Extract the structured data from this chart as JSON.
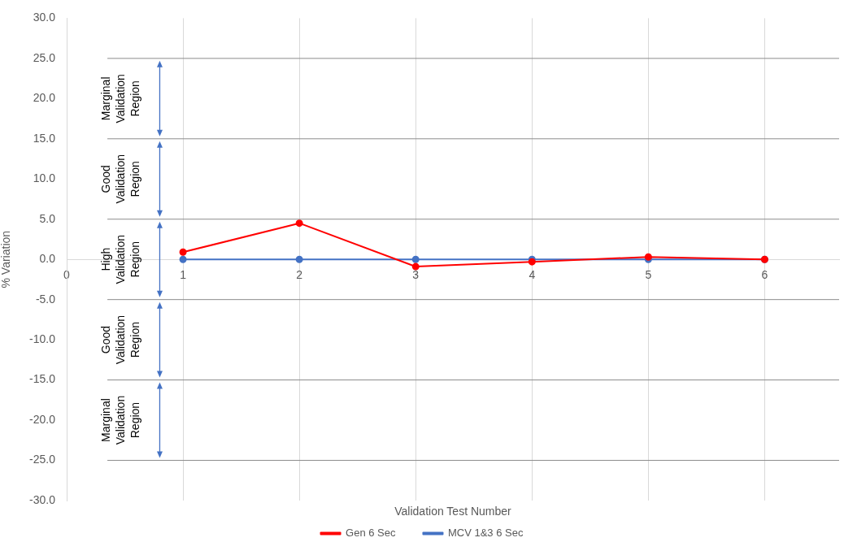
{
  "chart_data": {
    "type": "line",
    "xlabel": "Validation Test Number",
    "ylabel": "% Variation",
    "x": [
      1,
      2,
      3,
      4,
      5,
      6
    ],
    "series": [
      {
        "name": "Gen 6 Sec",
        "color": "#ff0000",
        "values": [
          0.9,
          4.5,
          -0.9,
          -0.3,
          0.3,
          0.0
        ]
      },
      {
        "name": "MCV 1&3 6 Sec",
        "color": "#4472c4",
        "values": [
          0,
          0,
          0,
          0,
          0,
          0
        ]
      }
    ],
    "xlim": [
      0,
      6.64
    ],
    "xticks": [
      0,
      1,
      2,
      3,
      4,
      5,
      6
    ],
    "ylim": [
      -30,
      30
    ],
    "yticks": [
      {
        "value": -30,
        "label": "-30.0"
      },
      {
        "value": -25,
        "label": "-25.0"
      },
      {
        "value": -20,
        "label": "-20.0"
      },
      {
        "value": -15,
        "label": "-15.0"
      },
      {
        "value": -10,
        "label": "-10.0"
      },
      {
        "value": -5,
        "label": "-5.0"
      },
      {
        "value": 0,
        "label": "0.0"
      },
      {
        "value": 5,
        "label": "5.0"
      },
      {
        "value": 10,
        "label": "10.0"
      },
      {
        "value": 15,
        "label": "15.0"
      },
      {
        "value": 20,
        "label": "20.0"
      },
      {
        "value": 25,
        "label": "25.0"
      },
      {
        "value": 30,
        "label": "30.0"
      }
    ],
    "ref_lines": [
      {
        "axis": "y",
        "value": 25,
        "color": "#8c8c8c"
      },
      {
        "axis": "y",
        "value": 15,
        "color": "#8c8c8c"
      },
      {
        "axis": "y",
        "value": 5,
        "color": "#8c8c8c"
      },
      {
        "axis": "y",
        "value": -5,
        "color": "#8c8c8c"
      },
      {
        "axis": "y",
        "value": -15,
        "color": "#8c8c8c"
      },
      {
        "axis": "y",
        "value": -25,
        "color": "#8c8c8c"
      }
    ],
    "annotations": [
      "Marginal Validation Region",
      "Good Validation Region",
      "High Validation Region",
      "Good Validation Region",
      "Marginal Validation Region"
    ],
    "grid": "x",
    "legend": "bottom",
    "marker": "circle",
    "line_style": "solid"
  }
}
